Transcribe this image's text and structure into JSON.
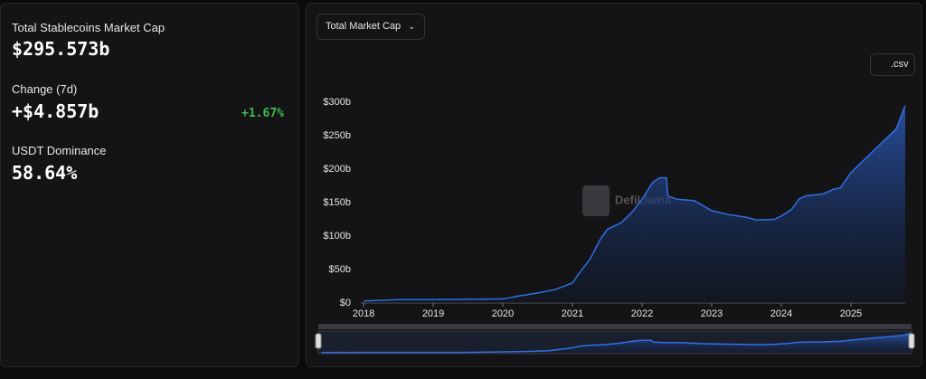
{
  "stats": {
    "market_cap_label": "Total Stablecoins Market Cap",
    "market_cap_value": "$295.573b",
    "change_label": "Change (7d)",
    "change_value": "+$4.857b",
    "change_pct": "+1.67%",
    "dominance_label": "USDT Dominance",
    "dominance_value": "58.64%"
  },
  "controls": {
    "dropdown": "Total Market Cap",
    "csv_button": ".csv"
  },
  "watermark": "DefiLlama",
  "chart_data": {
    "type": "area",
    "color": "#2f6fe0",
    "x": [
      2018.0,
      2018.5,
      2019.0,
      2019.5,
      2020.0,
      2020.2,
      2020.5,
      2020.75,
      2021.0,
      2021.1,
      2021.25,
      2021.4,
      2021.5,
      2021.7,
      2021.85,
      2022.0,
      2022.15,
      2022.25,
      2022.35,
      2022.37,
      2022.5,
      2022.75,
      2023.0,
      2023.25,
      2023.5,
      2023.65,
      2023.9,
      2024.0,
      2024.15,
      2024.25,
      2024.35,
      2024.6,
      2024.75,
      2024.85,
      2025.0,
      2025.2,
      2025.35,
      2025.5,
      2025.65,
      2025.78
    ],
    "values": [
      3,
      5,
      5,
      5.5,
      6,
      10,
      15,
      20,
      30,
      45,
      65,
      95,
      110,
      120,
      135,
      155,
      180,
      187,
      187,
      160,
      155,
      153,
      138,
      132,
      128,
      124,
      125,
      130,
      140,
      155,
      160,
      163,
      170,
      172,
      195,
      215,
      230,
      245,
      260,
      295
    ],
    "xlim": [
      2017.96,
      2025.78
    ],
    "xticks": [
      2018,
      2019,
      2020,
      2021,
      2022,
      2023,
      2024,
      2025
    ],
    "ylim": [
      0,
      300
    ],
    "yticks": [
      {
        "value": 0,
        "label": "$0"
      },
      {
        "value": 50,
        "label": "$50b"
      },
      {
        "value": 100,
        "label": "$100b"
      },
      {
        "value": 150,
        "label": "$150b"
      },
      {
        "value": 200,
        "label": "$200b"
      },
      {
        "value": 250,
        "label": "$250b"
      },
      {
        "value": 300,
        "label": "$300b"
      }
    ]
  }
}
